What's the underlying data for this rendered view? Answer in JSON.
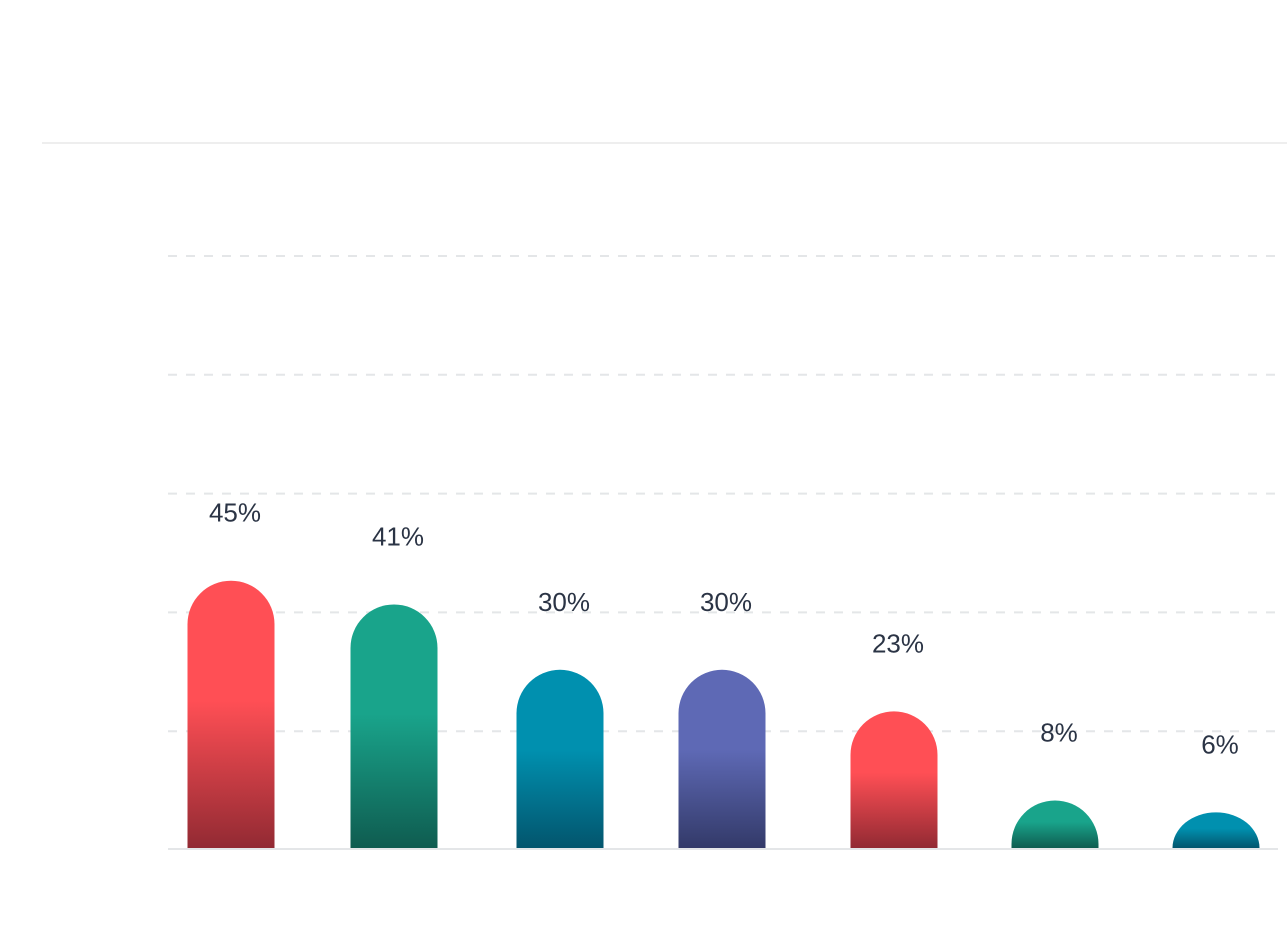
{
  "chart_data": {
    "type": "bar",
    "categories": [
      "",
      "",
      "",
      "",
      "",
      "",
      ""
    ],
    "values": [
      45,
      41,
      30,
      30,
      23,
      8,
      6
    ],
    "value_labels": [
      "45%",
      "41%",
      "30%",
      "30%",
      "23%",
      "8%",
      "6%"
    ],
    "title": "",
    "xlabel": "",
    "ylabel": "",
    "ylim": [
      0,
      100
    ],
    "grid": true,
    "legend": "none",
    "bar_colors": [
      {
        "top": "#ff4f55",
        "bottom": "#922a33"
      },
      {
        "top": "#19a48b",
        "bottom": "#0f5c50"
      },
      {
        "top": "#0090af",
        "bottom": "#03556d"
      },
      {
        "top": "#5e69b5",
        "bottom": "#333a69"
      },
      {
        "top": "#ff4f55",
        "bottom": "#922a33"
      },
      {
        "top": "#19a48b",
        "bottom": "#0f5c50"
      },
      {
        "top": "#0090af",
        "bottom": "#03556d"
      }
    ],
    "label_color": "#2b3445",
    "grid_color": "#e4e6e8",
    "axis_color": "#e4e6e8"
  }
}
